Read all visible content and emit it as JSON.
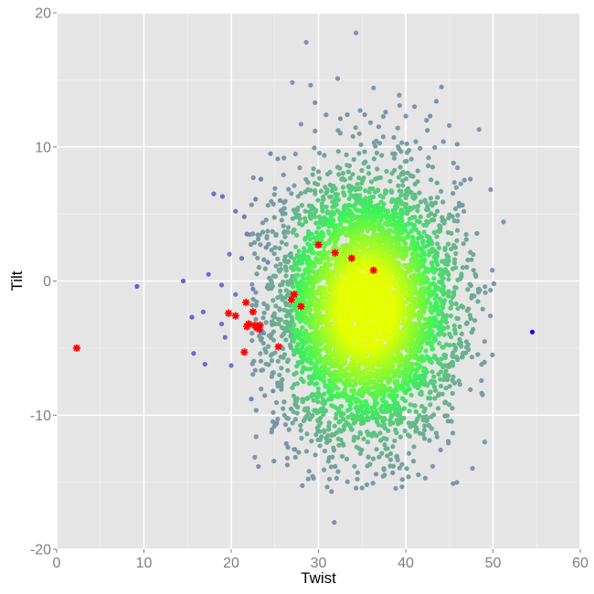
{
  "chart_data": {
    "type": "scatter",
    "title": "",
    "xlabel": "Twist",
    "ylabel": "Tilt",
    "xlim": [
      0,
      60
    ],
    "ylim": [
      -20,
      20
    ],
    "x_ticks": [
      0,
      10,
      20,
      30,
      40,
      50,
      60
    ],
    "y_ticks": [
      -20,
      -10,
      0,
      10,
      20
    ],
    "grid": true,
    "legend": "none",
    "colors": {
      "panel_background": "#e5e5e5",
      "grid_major": "#ffffff",
      "grid_minor": "#f2f2f2",
      "density_high": "#e6ff00",
      "density_mid": "#3cf25a",
      "density_low": "#7f93a8",
      "outlier": "#6b5fd6",
      "far_outlier": "#2200ee",
      "highlight": "#ff0000"
    },
    "bulk_cloud": {
      "center": [
        35.5,
        -2.0
      ],
      "spread": [
        5.2,
        4.8
      ],
      "n_points": 5200,
      "note_color_scale": "density"
    },
    "series": [
      {
        "name": "",
        "marker": "dot",
        "color_role": "sparse",
        "points": [
          [
            9.2,
            -0.4
          ],
          [
            14.5,
            0.0
          ],
          [
            15.5,
            -2.7
          ],
          [
            15.7,
            -5.4
          ],
          [
            16.8,
            -2.3
          ],
          [
            17.0,
            -6.2
          ],
          [
            17.4,
            0.5
          ],
          [
            18.0,
            6.5
          ],
          [
            18.9,
            -0.3
          ],
          [
            19.0,
            6.3
          ],
          [
            18.9,
            -3.2
          ],
          [
            19.3,
            -4.2
          ],
          [
            20.0,
            -6.3
          ],
          [
            20.5,
            5.2
          ],
          [
            21.5,
            4.8
          ],
          [
            21.8,
            3.5
          ],
          [
            22.3,
            -8.8
          ],
          [
            22.8,
            6.1
          ],
          [
            23.4,
            7.6
          ],
          [
            24.0,
            2.5
          ],
          [
            24.5,
            9.5
          ],
          [
            24.8,
            -8.2
          ],
          [
            25.2,
            -10.6
          ],
          [
            25.6,
            6.0
          ],
          [
            26.5,
            -12.4
          ],
          [
            27.0,
            14.8
          ],
          [
            28.0,
            11.7
          ],
          [
            28.6,
            17.8
          ],
          [
            29.1,
            14.6
          ],
          [
            29.6,
            13.3
          ],
          [
            31.5,
            -15.7
          ],
          [
            31.8,
            -18.0
          ],
          [
            32.2,
            15.1
          ],
          [
            32.5,
            12.1
          ],
          [
            33.3,
            12.4
          ],
          [
            34.3,
            18.5
          ],
          [
            35.3,
            12.4
          ],
          [
            36.3,
            14.4
          ],
          [
            36.6,
            -14.4
          ],
          [
            36.9,
            11.5
          ],
          [
            37.7,
            12.6
          ],
          [
            38.5,
            -14.3
          ],
          [
            39.3,
            13.1
          ],
          [
            40.0,
            12.3
          ],
          [
            41.0,
            13.0
          ],
          [
            42.8,
            12.3
          ],
          [
            43.5,
            13.4
          ],
          [
            44.0,
            -12.6
          ],
          [
            45.9,
            10.2
          ],
          [
            47.4,
            7.6
          ],
          [
            48.4,
            11.3
          ],
          [
            49.7,
            -2.6
          ],
          [
            50.1,
            -0.2
          ],
          [
            51.2,
            4.4
          ],
          [
            19.8,
            2.0
          ],
          [
            20.5,
            -1.0
          ],
          [
            21.2,
            1.7
          ],
          [
            22.5,
            -0.6
          ],
          [
            23.5,
            -3.8
          ],
          [
            24.2,
            1.4
          ]
        ]
      },
      {
        "name": "",
        "marker": "dot",
        "color_role": "far_outlier",
        "points": [
          [
            54.5,
            -3.8
          ]
        ]
      },
      {
        "name": "",
        "marker": "star",
        "color_role": "highlight",
        "points": [
          [
            2.3,
            -5.0
          ],
          [
            19.7,
            -2.4
          ],
          [
            20.5,
            -2.6
          ],
          [
            21.5,
            -5.3
          ],
          [
            21.7,
            -1.6
          ],
          [
            21.8,
            -3.4
          ],
          [
            22.0,
            -3.2
          ],
          [
            22.5,
            -2.3
          ],
          [
            22.7,
            -3.3
          ],
          [
            23.0,
            -3.5
          ],
          [
            23.3,
            -3.3
          ],
          [
            23.2,
            -3.6
          ],
          [
            25.4,
            -4.9
          ],
          [
            26.9,
            -1.4
          ],
          [
            27.2,
            -1.0
          ],
          [
            28.0,
            -1.9
          ],
          [
            30.0,
            2.7
          ],
          [
            31.9,
            2.1
          ],
          [
            33.8,
            1.7
          ],
          [
            36.3,
            0.8
          ]
        ]
      }
    ]
  }
}
